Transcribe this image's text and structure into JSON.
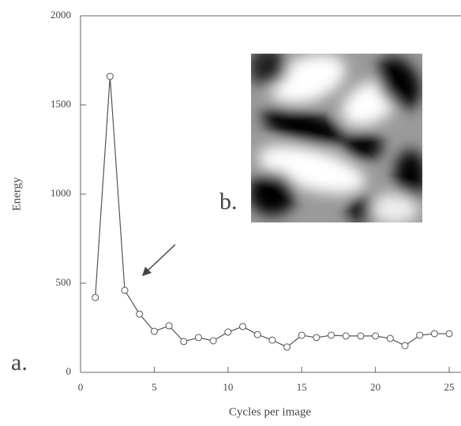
{
  "chart_data": {
    "type": "line",
    "x_label": "Cycles per image",
    "y_label": "Energy",
    "annotations": [
      "a.",
      "b."
    ],
    "x": [
      1,
      2,
      3,
      4,
      5,
      6,
      7,
      8,
      9,
      10,
      11,
      12,
      13,
      14,
      15,
      16,
      17,
      18,
      19,
      20,
      21,
      22,
      23,
      24,
      25
    ],
    "series": [
      {
        "color": "#555555",
        "values": [
          420,
          1660,
          460,
          327,
          230,
          261,
          173,
          195,
          177,
          226,
          257,
          212,
          181,
          142,
          208,
          195,
          208,
          204,
          204,
          204,
          190,
          150,
          208,
          217,
          217
        ]
      }
    ],
    "xlim": [
      0,
      25.8
    ],
    "ylim": [
      0,
      2000
    ],
    "xticks": [
      0,
      5,
      10,
      15,
      20,
      25
    ],
    "yticks": [
      0,
      500,
      1000,
      1500,
      2000
    ]
  }
}
